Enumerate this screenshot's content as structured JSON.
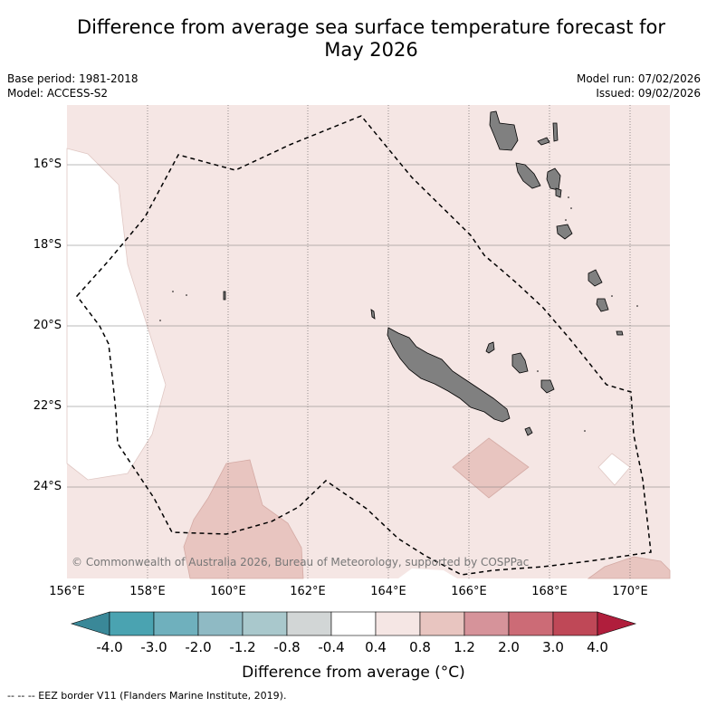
{
  "title_line1": "Difference from average sea surface temperature forecast for",
  "title_line2": "May 2026",
  "base_period": "Base period: 1981-2018",
  "model": "Model: ACCESS-S2",
  "model_run": "Model run: 07/02/2026",
  "issued": "Issued: 09/02/2026",
  "lat_labels": [
    "16°S",
    "18°S",
    "20°S",
    "22°S",
    "24°S"
  ],
  "lon_labels": [
    "156°E",
    "158°E",
    "160°E",
    "162°E",
    "164°E",
    "166°E",
    "168°E",
    "170°E"
  ],
  "copyright": "© Commonwealth of Australia 2026, Bureau of Meteorology, supported by COSPPac",
  "colorbar": {
    "tick_labels": [
      "-4.0",
      "-3.0",
      "-2.0",
      "-1.2",
      "-0.8",
      "-0.4",
      "0.4",
      "0.8",
      "1.2",
      "2.0",
      "3.0",
      "4.0"
    ],
    "colors": [
      "#4aa3b1",
      "#6fb0bd",
      "#8fbac4",
      "#a9c8cc",
      "#d2d6d6",
      "#ffffff",
      "#f5e6e4",
      "#e8c5c0",
      "#d6939a",
      "#cc6b76",
      "#bf4857"
    ],
    "under_color": "#3a8898",
    "over_color": "#b01e3c",
    "title": "Difference from average (°C)"
  },
  "footer": "-- -- -- EEZ border V11 (Flanders Marine Institute, 2019).",
  "colors": {
    "ocean_anomaly": "#f5e6e4",
    "warm_patch": "#e8c5c0",
    "neutral": "#ffffff",
    "land": "#808080"
  }
}
